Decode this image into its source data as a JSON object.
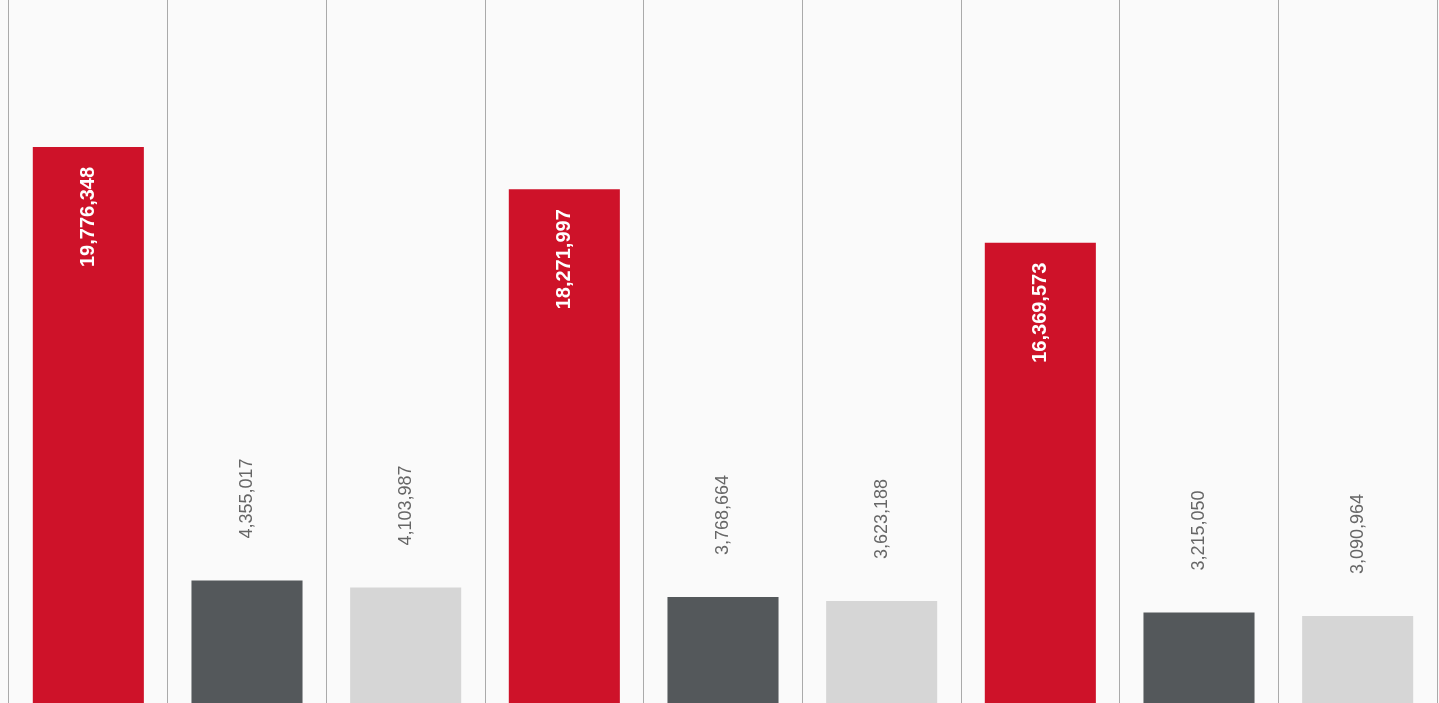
{
  "chart_data": {
    "type": "bar",
    "categories": [
      null,
      null,
      null,
      null,
      null,
      null,
      null,
      null,
      null
    ],
    "values": [
      19776348,
      4355017,
      4103987,
      18271997,
      3768664,
      3623188,
      16369573,
      3215050,
      3090964
    ],
    "value_labels": [
      "19,776,348",
      "4,355,017",
      "4,103,987",
      "18,271,997",
      "3,768,664",
      "3,623,188",
      "16,369,573",
      "3,215,050",
      "3,090,964"
    ],
    "colors": [
      "#ce1229",
      "#54585b",
      "#d6d6d6",
      "#ce1229",
      "#54585b",
      "#d6d6d6",
      "#ce1229",
      "#54585b",
      "#d6d6d6"
    ],
    "grid": "x",
    "tick_labels": false,
    "legend": false
  }
}
